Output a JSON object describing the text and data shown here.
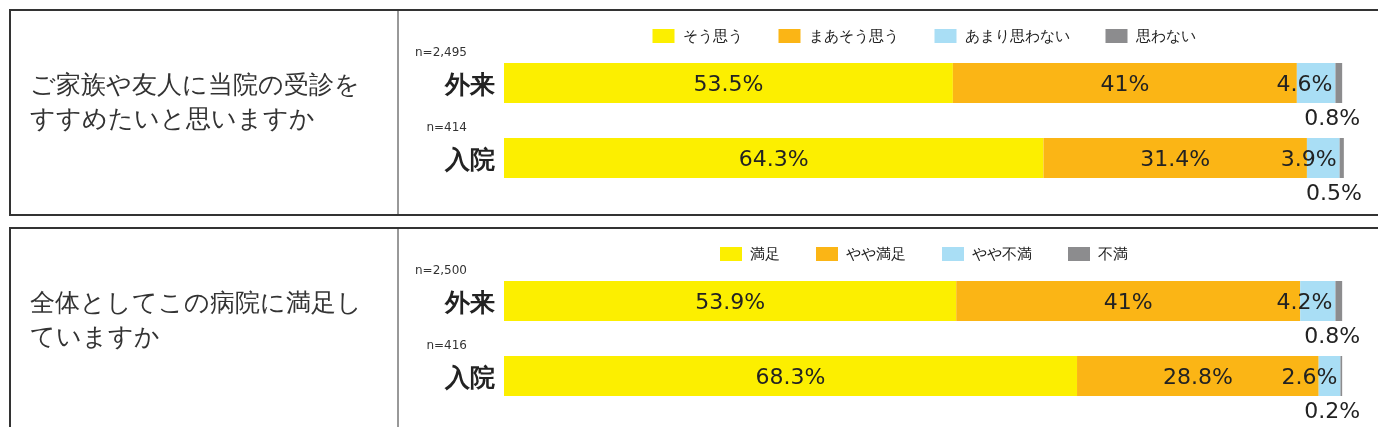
{
  "chart_data": [
    {
      "type": "bar",
      "stacked": true,
      "orientation": "horizontal",
      "title": "ご家族や友人に当院の受診をすすめたいと思いますか",
      "categories": [
        "外来",
        "入院"
      ],
      "annotations": [
        "n=2,495",
        "n=414"
      ],
      "xlim": [
        0,
        100
      ],
      "tick_labels": "y",
      "legend": "top",
      "series": [
        {
          "name": "そう思う",
          "color": "#fcef00",
          "values": [
            53.5,
            64.3
          ],
          "value_labels": [
            "53.5%",
            "64.3%"
          ]
        },
        {
          "name": "まあそう思う",
          "color": "#fbb515",
          "values": [
            41,
            31.4
          ],
          "value_labels": [
            "41%",
            "31.4%"
          ]
        },
        {
          "name": "あまり思わない",
          "color": "#a9def5",
          "values": [
            4.6,
            3.9
          ],
          "value_labels": [
            "4.6%",
            "3.9%"
          ]
        },
        {
          "name": "思わない",
          "color": "#8c8c8e",
          "values": [
            0.8,
            0.5
          ],
          "value_labels": [
            "0.8%",
            "0.5%"
          ]
        }
      ]
    },
    {
      "type": "bar",
      "stacked": true,
      "orientation": "horizontal",
      "title": "全体としてこの病院に満足していますか",
      "categories": [
        "外来",
        "入院"
      ],
      "annotations": [
        "n=2,500",
        "n=416"
      ],
      "xlim": [
        0,
        100
      ],
      "tick_labels": "y",
      "legend": "top",
      "series": [
        {
          "name": "満足",
          "color": "#fcef00",
          "values": [
            53.9,
            68.3
          ],
          "value_labels": [
            "53.9%",
            "68.3%"
          ]
        },
        {
          "name": "やや満足",
          "color": "#fbb515",
          "values": [
            41,
            28.8
          ],
          "value_labels": [
            "41%",
            "28.8%"
          ]
        },
        {
          "name": "やや不満",
          "color": "#a9def5",
          "values": [
            4.2,
            2.6
          ],
          "value_labels": [
            "4.2%",
            "2.6%"
          ]
        },
        {
          "name": "不満",
          "color": "#8c8c8e",
          "values": [
            0.8,
            0.2
          ],
          "value_labels": [
            "0.8%",
            "0.2%"
          ]
        }
      ]
    }
  ]
}
